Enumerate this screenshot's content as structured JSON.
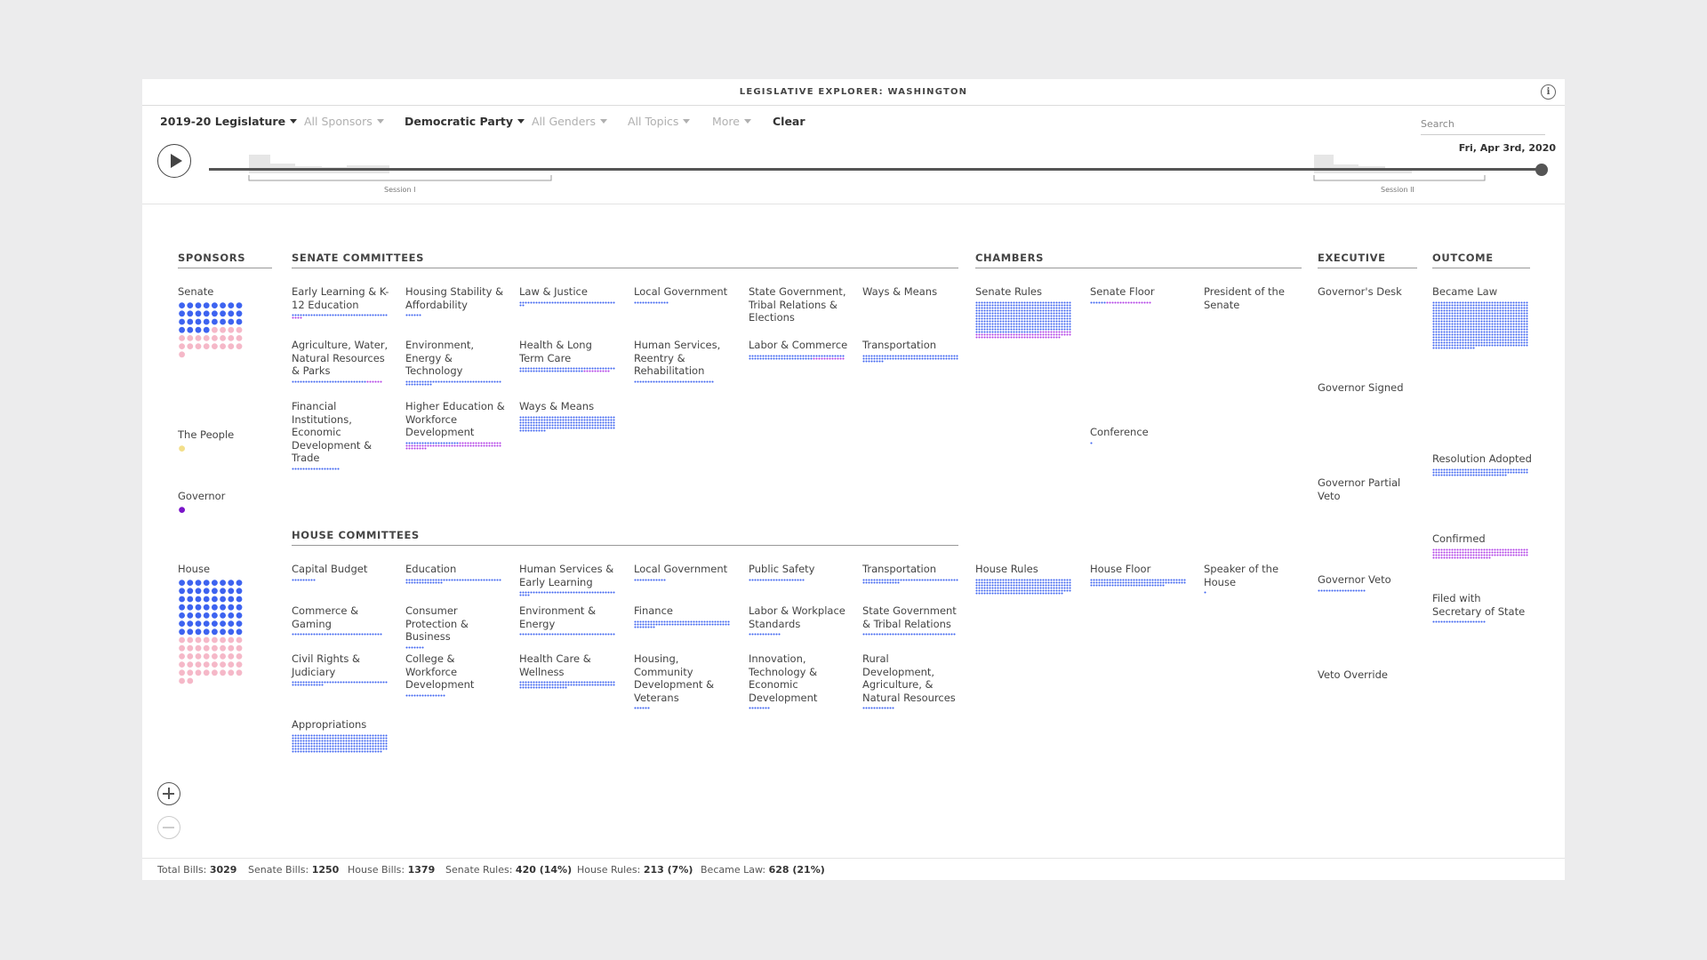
{
  "app": {
    "title": "LEGISLATIVE EXPLORER: WASHINGTON",
    "info_icon": "info-icon"
  },
  "filters": [
    {
      "label": "2019-20 Legislature",
      "active": true
    },
    {
      "label": "All Sponsors",
      "active": false
    },
    {
      "label": "Democratic Party",
      "active": true
    },
    {
      "label": "All Genders",
      "active": false
    },
    {
      "label": "All Topics",
      "active": false
    },
    {
      "label": "More",
      "active": false
    }
  ],
  "clear_label": "Clear",
  "search": {
    "placeholder": "Search"
  },
  "timeline": {
    "date": "Fri, Apr 3rd, 2020",
    "position": 1.0,
    "sessions": [
      {
        "label": "Session I"
      },
      {
        "label": "Session II"
      }
    ]
  },
  "colors": {
    "democrat": "#3d63f0",
    "republican": "#f5b8c8",
    "people": "#f3df8a",
    "governor": "#7a14c9",
    "bill": "#3d63f0",
    "resolution": "#b13ee6"
  },
  "columns": {
    "sponsors": "SPONSORS",
    "senate_committees": "SENATE COMMITTEES",
    "house_committees": "HOUSE COMMITTEES",
    "chambers": "CHAMBERS",
    "executive": "EXECUTIVE",
    "outcome": "OUTCOME"
  },
  "sponsors": [
    {
      "label": "Senate",
      "dem": 28,
      "rep": 21
    },
    {
      "label": "The People",
      "people": 1
    },
    {
      "label": "Governor",
      "governor": 1
    },
    {
      "label": "House",
      "dem": 56,
      "rep": 42
    }
  ],
  "senate_committees": [
    {
      "label": "Early Learning & K-12 Education",
      "blue": 36,
      "purple": 4
    },
    {
      "label": "Housing Stability & Affordability",
      "blue": 6,
      "purple": 0
    },
    {
      "label": "Law & Justice",
      "blue": 38,
      "purple": 0
    },
    {
      "label": "Local Government",
      "blue": 13,
      "purple": 0
    },
    {
      "label": "State Government, Tribal Relations & Elections",
      "blue": 0,
      "purple": 0
    },
    {
      "label": "Ways & Means",
      "blue": 0,
      "purple": 0
    },
    {
      "label": "Agriculture, Water, Natural Resources & Parks",
      "blue": 28,
      "purple": 6
    },
    {
      "label": "Environment, Energy & Technology",
      "blue": 46,
      "purple": 0
    },
    {
      "label": "Health & Long Term Care",
      "blue": 60,
      "purple": 10
    },
    {
      "label": "Human Services, Reentry & Rehabilitation",
      "blue": 30,
      "purple": 0
    },
    {
      "label": "Labor & Commerce",
      "blue": 60,
      "purple": 12
    },
    {
      "label": "Transportation",
      "blue": 80,
      "purple": 0
    },
    {
      "label": "Financial Institutions, Economic Development & Trade",
      "blue": 18,
      "purple": 0
    },
    {
      "label": "Higher Education & Workforce Development",
      "blue": 20,
      "purple": 60
    },
    {
      "label": "Ways & Means",
      "blue": 190,
      "purple": 0
    }
  ],
  "house_committees": [
    {
      "label": "Capital Budget",
      "blue": 9,
      "purple": 0
    },
    {
      "label": "Education",
      "blue": 50,
      "purple": 0
    },
    {
      "label": "Human Services & Early Learning",
      "blue": 40,
      "purple": 0
    },
    {
      "label": "Local Government",
      "blue": 12,
      "purple": 0
    },
    {
      "label": "Public Safety",
      "blue": 21,
      "purple": 0
    },
    {
      "label": "Transportation",
      "blue": 50,
      "purple": 0
    },
    {
      "label": "Commerce & Gaming",
      "blue": 34,
      "purple": 0
    },
    {
      "label": "Consumer Protection & Business",
      "blue": 7,
      "purple": 0
    },
    {
      "label": "Environment & Energy",
      "blue": 36,
      "purple": 0
    },
    {
      "label": "Finance",
      "blue": 80,
      "purple": 0
    },
    {
      "label": "Labor & Workplace Standards",
      "blue": 12,
      "purple": 0
    },
    {
      "label": "State Government & Tribal Relations",
      "blue": 35,
      "purple": 0
    },
    {
      "label": "Civil Rights & Judiciary",
      "blue": 48,
      "purple": 0
    },
    {
      "label": "College & Workforce Development",
      "blue": 15,
      "purple": 0
    },
    {
      "label": "Health Care & Wellness",
      "blue": 90,
      "purple": 0
    },
    {
      "label": "Housing, Community Development & Veterans",
      "blue": 6,
      "purple": 0
    },
    {
      "label": "Innovation, Technology & Economic Development",
      "blue": 8,
      "purple": 0
    },
    {
      "label": "Rural Development, Agriculture, & Natural Resources",
      "blue": 12,
      "purple": 0
    },
    {
      "label": "Appropriations",
      "blue": 250,
      "purple": 0
    }
  ],
  "chambers": [
    {
      "label": "Senate Rules",
      "blue": 420,
      "purple": 80
    },
    {
      "label": "Senate Floor",
      "blue": 6,
      "purple": 17
    },
    {
      "label": "President of the Senate",
      "blue": 0,
      "purple": 0
    },
    {
      "label": "Conference",
      "blue": 1,
      "purple": 0
    },
    {
      "label": "House Rules",
      "blue": 213,
      "purple": 0
    },
    {
      "label": "House Floor",
      "blue": 100,
      "purple": 0
    },
    {
      "label": "Speaker of the House",
      "blue": 1,
      "purple": 0
    }
  ],
  "executive": [
    {
      "label": "Governor's Desk",
      "blue": 0
    },
    {
      "label": "Governor Signed",
      "blue": 0
    },
    {
      "label": "Governor Partial Veto",
      "blue": 0
    },
    {
      "label": "Governor Veto",
      "blue": 18
    },
    {
      "label": "Veto Override",
      "blue": 0
    }
  ],
  "outcome": [
    {
      "label": "Became Law",
      "blue": 628,
      "purple": 0
    },
    {
      "label": "Resolution Adopted",
      "blue": 100,
      "purple": 0
    },
    {
      "label": "Confirmed",
      "blue": 0,
      "purple": 130
    },
    {
      "label": "Filed with Secretary of State",
      "blue": 20,
      "purple": 0
    }
  ],
  "footer": [
    {
      "label": "Total Bills:",
      "value": "3029"
    },
    {
      "label": "Senate Bills:",
      "value": "1250"
    },
    {
      "label": "House Bills:",
      "value": "1379"
    },
    {
      "label": "Senate Rules:",
      "value": "420 (14%)"
    },
    {
      "label": "House Rules:",
      "value": "213 (7%)"
    },
    {
      "label": "Became Law:",
      "value": "628 (21%)"
    }
  ]
}
